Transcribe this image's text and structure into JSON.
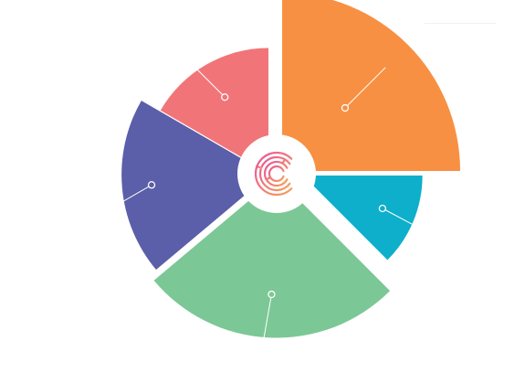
{
  "diagram": {
    "type": "exploded-polar-area",
    "center_logo": "c-maze-logo-icon",
    "segments": [
      {
        "name": "orange",
        "color": "#F79043",
        "relative_size": 1.0
      },
      {
        "name": "teal",
        "color": "#0DAFCB",
        "relative_size": 0.67
      },
      {
        "name": "green",
        "color": "#7CC796",
        "relative_size": 0.9
      },
      {
        "name": "purple",
        "color": "#5B5EA8",
        "relative_size": 0.83
      },
      {
        "name": "coral",
        "color": "#F17578",
        "relative_size": 0.7
      }
    ],
    "logo_gradient": [
      "#E8559A",
      "#F5A25A"
    ]
  }
}
